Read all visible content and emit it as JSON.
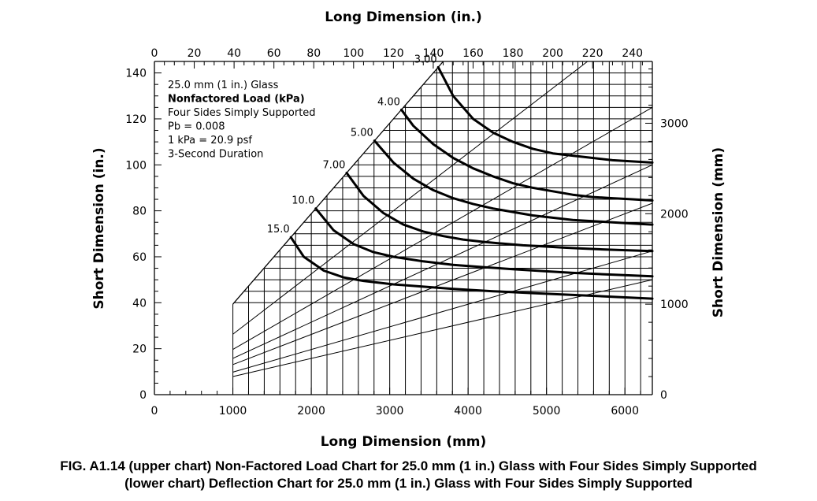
{
  "figure": {
    "caption_line1": "FIG. A1.14 (upper chart) Non-Factored Load Chart for 25.0 mm (1 in.) Glass with Four Sides Simply Supported",
    "caption_line2": "(lower chart) Deflection Chart for 25.0 mm (1 in.) Glass with Four Sides Simply Supported"
  },
  "chart_data": {
    "type": "line",
    "title": "",
    "xlabel_top": "Long Dimension (in.)",
    "xlabel_bottom": "Long Dimension (mm)",
    "ylabel_left": "Short Dimension (in.)",
    "ylabel_right": "Short Dimension (mm)",
    "xlim_in": [
      0,
      250
    ],
    "ylim_in": [
      0,
      145
    ],
    "x_ticks_in": [
      0,
      20,
      40,
      60,
      80,
      100,
      120,
      140,
      160,
      180,
      200,
      220,
      240
    ],
    "x_ticks_mm": [
      0,
      1000,
      2000,
      3000,
      4000,
      5000,
      6000
    ],
    "y_ticks_in": [
      0,
      20,
      40,
      60,
      80,
      100,
      120,
      140
    ],
    "y_ticks_mm": [
      0,
      1000,
      2000,
      3000
    ],
    "grid": "on",
    "grid_region": {
      "x_min_in": 39.4,
      "y_min_in": 40,
      "diagonal": "short = long",
      "x_step_mm": 200,
      "y_step_in": 5
    },
    "note": {
      "line1": "25.0 mm (1 in.) Glass",
      "line2": "Nonfactored Load (kPa)",
      "line3": "Four Sides Simply Supported",
      "line4": "Pb = 0.008",
      "line5": "1 kPa = 20.9 psf",
      "line6": "3-Second Duration"
    },
    "aspect_ratio_lines": [
      {
        "x": [
          39.4,
          250
        ],
        "y": [
          39.4,
          250
        ]
      },
      {
        "x": [
          39.4,
          250
        ],
        "y": [
          26.3,
          166.7
        ]
      },
      {
        "x": [
          39.4,
          250
        ],
        "y": [
          19.7,
          125
        ]
      },
      {
        "x": [
          39.4,
          250
        ],
        "y": [
          15.8,
          100
        ]
      },
      {
        "x": [
          39.4,
          250
        ],
        "y": [
          13.1,
          83.3
        ]
      },
      {
        "x": [
          39.4,
          250
        ],
        "y": [
          9.8,
          62.5
        ]
      },
      {
        "x": [
          39.4,
          250
        ],
        "y": [
          7.9,
          50
        ]
      }
    ],
    "series": [
      {
        "name": "3.00",
        "x": [
          142.5,
          150,
          160,
          170,
          180,
          190,
          200,
          210,
          220,
          230,
          240,
          250
        ],
        "y": [
          142.5,
          130,
          120,
          114,
          110,
          107,
          105,
          104,
          103,
          102,
          101.5,
          101
        ]
      },
      {
        "name": "4.00",
        "x": [
          124,
          130,
          140,
          150,
          160,
          170,
          180,
          190,
          200,
          210,
          220,
          230,
          240,
          250
        ],
        "y": [
          124,
          117,
          109,
          103,
          98.5,
          95,
          92,
          90,
          88.5,
          87,
          86,
          85.5,
          85,
          84.5
        ]
      },
      {
        "name": "5.00",
        "x": [
          110.5,
          120,
          130,
          140,
          150,
          160,
          170,
          180,
          190,
          200,
          210,
          220,
          230,
          240,
          250
        ],
        "y": [
          110.5,
          101,
          94,
          89,
          85.5,
          83,
          81,
          79.5,
          78,
          77,
          76,
          75.5,
          75,
          74.5,
          74
        ]
      },
      {
        "name": "7.00",
        "x": [
          96.5,
          105,
          115,
          125,
          135,
          145,
          155,
          165,
          175,
          185,
          195,
          205,
          215,
          225,
          235,
          250
        ],
        "y": [
          96.5,
          86.5,
          79,
          74,
          71,
          69,
          67.5,
          66.5,
          65.7,
          65,
          64.5,
          64,
          63.6,
          63.2,
          62.9,
          62.5
        ]
      },
      {
        "name": "10.0",
        "x": [
          81,
          90,
          100,
          110,
          120,
          135,
          150,
          165,
          180,
          195,
          210,
          225,
          250
        ],
        "y": [
          81,
          71.5,
          65.5,
          62,
          60,
          58,
          56.5,
          55.5,
          54.6,
          53.8,
          53,
          52.4,
          51.5
        ]
      },
      {
        "name": "15.0",
        "x": [
          68.5,
          75,
          85,
          95,
          105,
          120,
          135,
          150,
          170,
          190,
          210,
          230,
          250
        ],
        "y": [
          68.5,
          60,
          54,
          51,
          49.5,
          48,
          47,
          46,
          45,
          44.2,
          43.4,
          42.6,
          41.8
        ]
      }
    ]
  }
}
